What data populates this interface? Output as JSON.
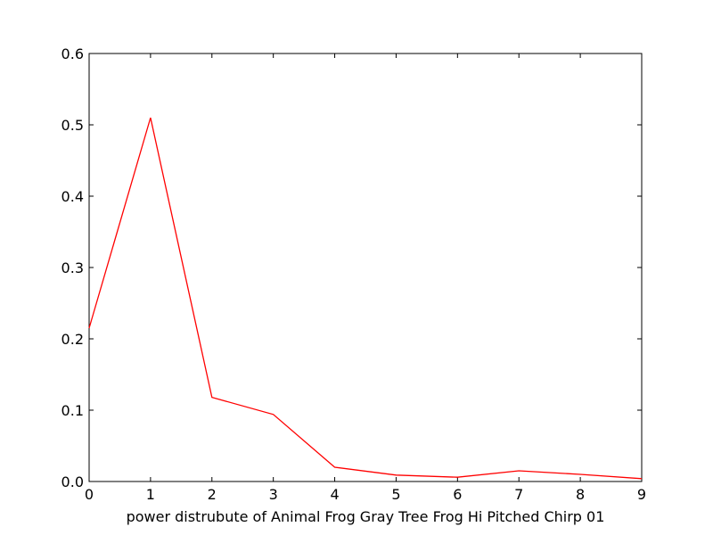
{
  "chart_data": {
    "type": "line",
    "title": "",
    "xlabel": "power distrubute of Animal Frog Gray Tree Frog Hi Pitched Chirp 01",
    "ylabel": "",
    "xlim": [
      0,
      9
    ],
    "ylim": [
      0,
      0.6
    ],
    "xticks": [
      "0",
      "1",
      "2",
      "3",
      "4",
      "5",
      "6",
      "7",
      "8",
      "9"
    ],
    "yticks": [
      "0.0",
      "0.1",
      "0.2",
      "0.3",
      "0.4",
      "0.5",
      "0.6"
    ],
    "grid": false,
    "series": [
      {
        "color": "#ff0000",
        "x": [
          0,
          1,
          2,
          3,
          4,
          5,
          6,
          7,
          8,
          9
        ],
        "y": [
          0.215,
          0.51,
          0.118,
          0.094,
          0.02,
          0.009,
          0.006,
          0.015,
          0.01,
          0.004
        ]
      }
    ]
  }
}
